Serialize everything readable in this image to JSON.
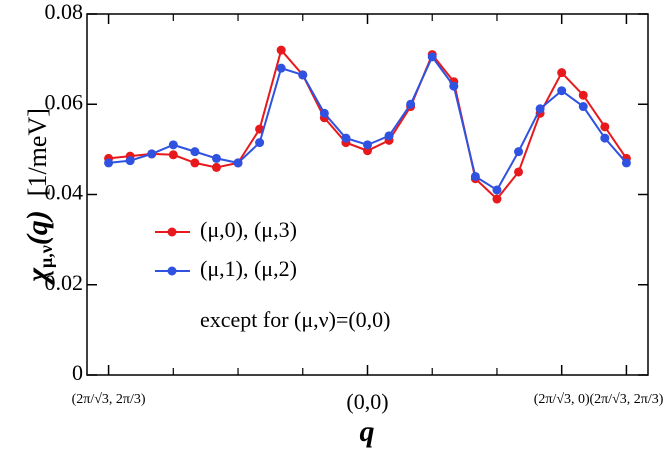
{
  "chart_data": {
    "type": "line",
    "ylabel_symbol": "χ",
    "ylabel_subscript": "μ,ν",
    "ylabel_argument": "(q)",
    "ylabel_unit": "[1/meV]",
    "xlabel": "q",
    "x": [
      0,
      1,
      2,
      3,
      4,
      5,
      6,
      7,
      8,
      9,
      10,
      11,
      12,
      13,
      14,
      15,
      16,
      17,
      18,
      19,
      20,
      21,
      22,
      23,
      24
    ],
    "series": [
      {
        "name": "(μ,0), (μ,3)",
        "color": "#e8191c",
        "values": [
          0.048,
          0.0485,
          0.049,
          0.0488,
          0.047,
          0.046,
          0.047,
          0.0545,
          0.072,
          0.0665,
          0.057,
          0.0515,
          0.0497,
          0.052,
          0.0595,
          0.071,
          0.065,
          0.0435,
          0.039,
          0.045,
          0.058,
          0.067,
          0.062,
          0.055,
          0.048
        ]
      },
      {
        "name": "(μ,1), (μ,2)",
        "color": "#2f52e0",
        "values": [
          0.047,
          0.0475,
          0.049,
          0.051,
          0.0495,
          0.048,
          0.047,
          0.0515,
          0.068,
          0.0665,
          0.058,
          0.0525,
          0.051,
          0.053,
          0.06,
          0.0705,
          0.064,
          0.044,
          0.041,
          0.0495,
          0.059,
          0.063,
          0.0595,
          0.0525,
          0.047
        ]
      }
    ],
    "annotation": "except for (μ,ν)=(0,0)",
    "xlim": [
      -1,
      25
    ],
    "xticks": [
      {
        "value": 0,
        "label": "(2π/√3, 2π/3)"
      },
      {
        "value": 12,
        "label": "(0,0)"
      },
      {
        "value": 21,
        "label": "(2π/√3, 0)"
      },
      {
        "value": 24,
        "label": "(2π/√3, 2π/3)"
      }
    ],
    "xminor_ticks": [
      3,
      6,
      9,
      15,
      18
    ],
    "ylim": [
      0,
      0.08
    ],
    "yticks": [
      0,
      0.02,
      0.04,
      0.06,
      0.08
    ]
  }
}
